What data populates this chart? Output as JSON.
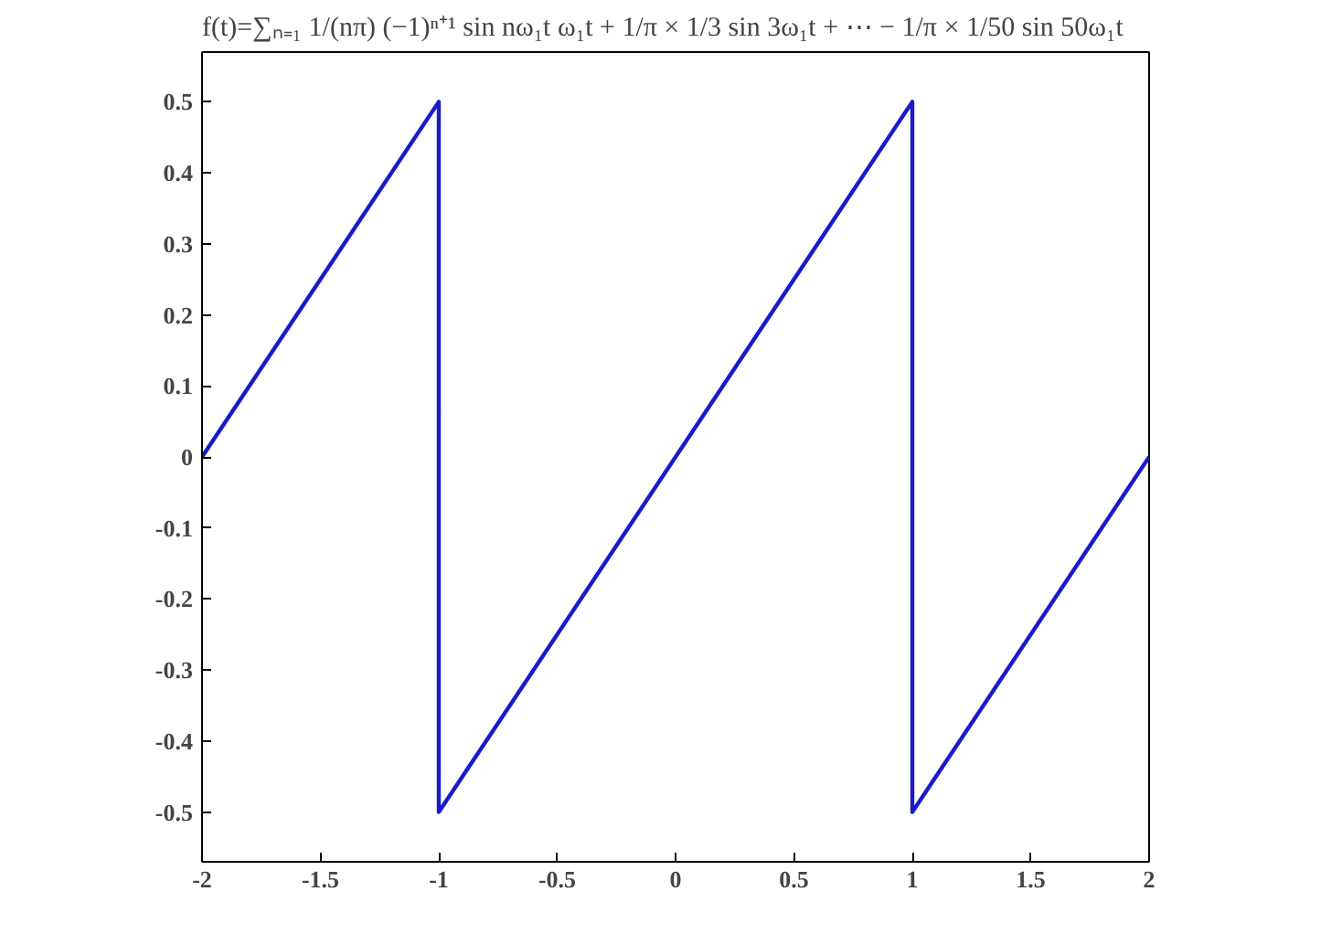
{
  "chart_data": {
    "type": "line",
    "title": "f(t)=∑ₙ₌₁ 1/(nπ) (−1)ⁿ⁺¹ sin nω₁t ω₁t + 1/π × 1/3 sin 3ω₁t + ⋯ − 1/π × 1/50 sin 50ω₁t",
    "series": [
      {
        "color": "#1a1acc",
        "x": [
          -2,
          -1,
          -1,
          1,
          1,
          2
        ],
        "values": [
          0,
          0.5,
          -0.5,
          0.5,
          -0.5,
          0
        ]
      }
    ],
    "xlim": [
      -2,
      2
    ],
    "ylim": [
      -0.57,
      0.57
    ],
    "xticks": [
      -2,
      -1.5,
      -1,
      -0.5,
      0,
      0.5,
      1,
      1.5,
      2
    ],
    "yticks": [
      -0.5,
      -0.4,
      -0.3,
      -0.2,
      -0.1,
      0,
      0.1,
      0.2,
      0.3,
      0.4,
      0.5
    ],
    "grid": false,
    "marker": "none",
    "line_style": "solid"
  }
}
